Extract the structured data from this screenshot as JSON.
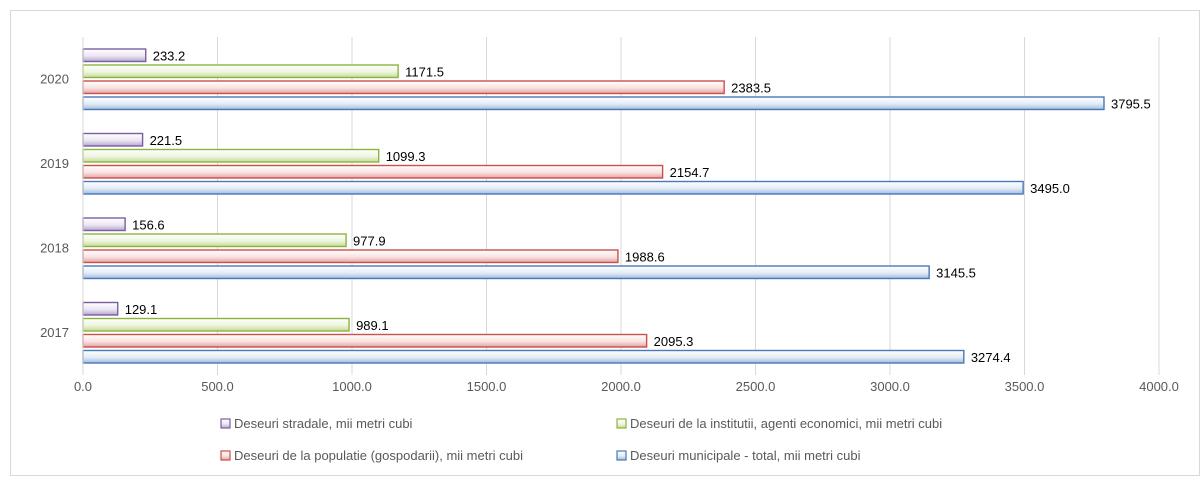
{
  "chart_data": {
    "type": "bar",
    "orientation": "horizontal",
    "title": "",
    "xlabel": "",
    "ylabel": "",
    "xlim": [
      0,
      4000
    ],
    "x_ticks": [
      "0.0",
      "500.0",
      "1000.0",
      "1500.0",
      "2000.0",
      "2500.0",
      "3000.0",
      "3500.0",
      "4000.0"
    ],
    "grid": "vertical",
    "legend_position": "bottom",
    "categories": [
      "2017",
      "2018",
      "2019",
      "2020"
    ],
    "series": [
      {
        "name": "Deseuri stradale,  mii metri cubi",
        "color": "#7a5fa0",
        "fill": "#ffffff",
        "values": [
          129.1,
          156.6,
          221.5,
          233.2
        ],
        "labels": [
          "129.1",
          "156.6",
          "221.5",
          "233.2"
        ]
      },
      {
        "name": "Deseuri de la institutii, agenti economici, mii metri cubi",
        "color": "#8db33f",
        "fill": "#ffffff",
        "values": [
          989.1,
          977.9,
          1099.3,
          1171.5
        ],
        "labels": [
          "989.1",
          "977.9",
          "1099.3",
          "1171.5"
        ]
      },
      {
        "name": "Deseuri de la populatie (gospodarii), mii metri cubi",
        "color": "#c9504b",
        "fill": "#ffffff",
        "values": [
          2095.3,
          1988.6,
          2154.7,
          2383.5
        ],
        "labels": [
          "2095.3",
          "1988.6",
          "2154.7",
          "2383.5"
        ]
      },
      {
        "name": "Deseuri municipale - total, mii metri cubi",
        "color": "#4a78b8",
        "fill": "#ffffff",
        "values": [
          3274.4,
          3145.5,
          3495.0,
          3795.5
        ],
        "labels": [
          "3274.4",
          "3145.5",
          "3495.0",
          "3795.5"
        ]
      }
    ]
  }
}
